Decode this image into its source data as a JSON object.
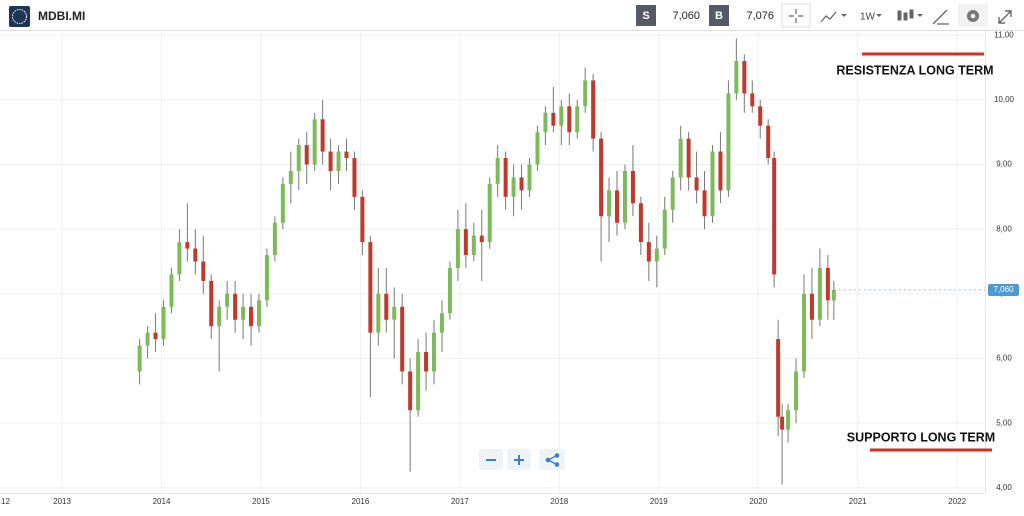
{
  "header": {
    "symbol": "MDBI.MI",
    "sell_tag": "S",
    "sell_price": "7,060",
    "buy_tag": "B",
    "buy_price": "7,076",
    "timeframe": "1W"
  },
  "chart_data": {
    "type": "candlestick",
    "x": [
      2013.78,
      2013.86,
      2013.94,
      2014.02,
      2014.1,
      2014.18,
      2014.26,
      2014.34,
      2014.42,
      2014.5,
      2014.58,
      2014.66,
      2014.74,
      2014.82,
      2014.9,
      2014.98,
      2015.06,
      2015.14,
      2015.22,
      2015.3,
      2015.38,
      2015.46,
      2015.54,
      2015.62,
      2015.7,
      2015.78,
      2015.86,
      2015.94,
      2016.02,
      2016.1,
      2016.18,
      2016.26,
      2016.34,
      2016.42,
      2016.5,
      2016.58,
      2016.66,
      2016.74,
      2016.82,
      2016.9,
      2016.98,
      2017.06,
      2017.14,
      2017.22,
      2017.3,
      2017.38,
      2017.46,
      2017.54,
      2017.62,
      2017.7,
      2017.78,
      2017.86,
      2017.94,
      2018.02,
      2018.1,
      2018.18,
      2018.26,
      2018.34,
      2018.42,
      2018.5,
      2018.58,
      2018.66,
      2018.74,
      2018.82,
      2018.9,
      2018.98,
      2019.06,
      2019.14,
      2019.22,
      2019.3,
      2019.38,
      2019.46,
      2019.54,
      2019.62,
      2019.7,
      2019.78,
      2019.86,
      2019.94,
      2020.02,
      2020.1,
      2020.16,
      2020.2,
      2020.24,
      2020.3,
      2020.38,
      2020.46,
      2020.54,
      2020.62,
      2020.7,
      2020.76
    ],
    "open": [
      5.8,
      6.2,
      6.4,
      6.3,
      6.8,
      7.3,
      7.8,
      7.7,
      7.5,
      7.2,
      6.5,
      6.8,
      7.0,
      6.6,
      6.8,
      6.5,
      6.9,
      7.6,
      8.1,
      8.7,
      8.9,
      9.3,
      9.0,
      9.7,
      9.2,
      8.9,
      9.2,
      9.1,
      8.5,
      7.8,
      6.4,
      7.0,
      6.6,
      6.8,
      5.8,
      5.2,
      6.1,
      5.8,
      6.4,
      6.7,
      7.4,
      8.0,
      7.6,
      7.9,
      7.8,
      8.7,
      9.1,
      8.5,
      8.8,
      8.6,
      9.0,
      9.5,
      9.8,
      9.6,
      9.9,
      9.5,
      9.9,
      10.3,
      9.4,
      8.2,
      8.6,
      8.1,
      8.9,
      8.4,
      7.8,
      7.5,
      7.7,
      8.3,
      8.8,
      9.4,
      8.8,
      8.6,
      8.2,
      9.2,
      8.6,
      10.1,
      10.6,
      10.1,
      9.9,
      9.6,
      9.1,
      6.3,
      5.1,
      4.9,
      5.2,
      5.8,
      7.0,
      6.6,
      7.4,
      6.9
    ],
    "high": [
      6.3,
      6.5,
      6.7,
      6.9,
      7.4,
      8.0,
      8.4,
      8.0,
      7.9,
      7.3,
      6.9,
      7.2,
      7.2,
      7.0,
      7.0,
      7.0,
      7.7,
      8.2,
      8.8,
      9.2,
      9.4,
      9.5,
      9.8,
      10.0,
      9.4,
      9.3,
      9.4,
      9.2,
      8.6,
      7.9,
      7.4,
      7.4,
      7.1,
      7.0,
      6.0,
      6.3,
      6.4,
      6.6,
      6.9,
      7.5,
      8.3,
      8.4,
      8.1,
      8.3,
      8.8,
      9.3,
      9.2,
      9.0,
      9.0,
      9.1,
      9.6,
      9.9,
      10.2,
      10.0,
      10.1,
      10.0,
      10.5,
      10.4,
      9.5,
      8.8,
      8.9,
      9.0,
      9.3,
      8.5,
      8.1,
      7.9,
      8.5,
      8.9,
      9.6,
      9.5,
      9.2,
      8.9,
      9.3,
      9.5,
      10.3,
      10.95,
      10.7,
      10.3,
      10.0,
      9.7,
      9.2,
      6.6,
      5.3,
      5.3,
      6.0,
      7.3,
      7.4,
      7.7,
      7.6,
      7.2
    ],
    "low": [
      5.6,
      6.0,
      6.1,
      6.2,
      6.7,
      7.2,
      7.5,
      7.3,
      7.0,
      6.3,
      5.8,
      6.6,
      6.4,
      6.3,
      6.2,
      6.4,
      6.8,
      7.5,
      8.0,
      8.4,
      8.6,
      8.7,
      8.9,
      9.0,
      8.6,
      8.7,
      8.9,
      8.3,
      7.6,
      5.4,
      6.2,
      6.4,
      6.0,
      5.6,
      4.25,
      5.1,
      5.5,
      5.6,
      6.1,
      6.6,
      7.2,
      7.4,
      7.5,
      7.2,
      7.7,
      8.5,
      8.3,
      8.2,
      8.3,
      8.5,
      8.9,
      9.3,
      9.5,
      9.3,
      9.3,
      9.4,
      9.8,
      9.2,
      7.5,
      7.8,
      7.9,
      8.0,
      8.2,
      7.6,
      7.2,
      7.1,
      7.6,
      8.1,
      8.6,
      8.6,
      8.4,
      8.0,
      8.1,
      8.4,
      8.5,
      10.0,
      9.8,
      9.8,
      9.4,
      9.0,
      7.1,
      4.8,
      4.05,
      4.7,
      5.0,
      5.7,
      6.3,
      6.5,
      6.6,
      6.6
    ],
    "close": [
      6.2,
      6.4,
      6.3,
      6.8,
      7.3,
      7.8,
      7.7,
      7.5,
      7.2,
      6.5,
      6.8,
      7.0,
      6.6,
      6.8,
      6.5,
      6.9,
      7.6,
      8.1,
      8.7,
      8.9,
      9.3,
      9.0,
      9.7,
      9.2,
      8.9,
      9.2,
      9.1,
      8.5,
      7.8,
      6.4,
      7.0,
      6.6,
      6.8,
      5.8,
      5.2,
      6.1,
      5.8,
      6.4,
      6.7,
      7.4,
      8.0,
      7.6,
      7.9,
      7.8,
      8.7,
      9.1,
      8.5,
      8.8,
      8.6,
      9.0,
      9.5,
      9.8,
      9.6,
      9.9,
      9.5,
      9.9,
      10.3,
      9.4,
      8.2,
      8.6,
      8.1,
      8.9,
      8.4,
      7.8,
      7.5,
      7.7,
      8.3,
      8.8,
      9.4,
      8.8,
      8.6,
      8.2,
      9.2,
      8.6,
      10.1,
      10.6,
      10.1,
      9.9,
      9.6,
      9.1,
      7.3,
      5.1,
      4.9,
      5.2,
      5.8,
      7.0,
      6.6,
      7.4,
      6.9,
      7.06
    ],
    "up_color": "#7dbb5a",
    "down_color": "#c0392b",
    "xlim": [
      2012.376,
      2022.28
    ],
    "xticks": [
      {
        "value": 2012,
        "label": "12"
      },
      2013,
      2014,
      2015,
      2016,
      2017,
      2018,
      2019,
      2020,
      2021,
      2022
    ],
    "ylim": [
      3.92,
      11.08
    ],
    "yticks": [
      {
        "value": 4,
        "label": "4,00"
      },
      {
        "value": 5,
        "label": "5,00"
      },
      {
        "value": 6,
        "label": "6,00"
      },
      {
        "value": 7,
        "label": "7,00"
      },
      {
        "value": 8,
        "label": "8,00"
      },
      {
        "value": 9,
        "label": "9,00"
      },
      {
        "value": 10,
        "label": "10,00"
      },
      {
        "value": 11,
        "label": "11,00"
      }
    ],
    "grid": true,
    "last_price": {
      "value": 7.06,
      "label": "7,060"
    },
    "annotations": [
      "RESISTENZA LONG TERM",
      "SUPPORTO LONG TERM"
    ]
  }
}
